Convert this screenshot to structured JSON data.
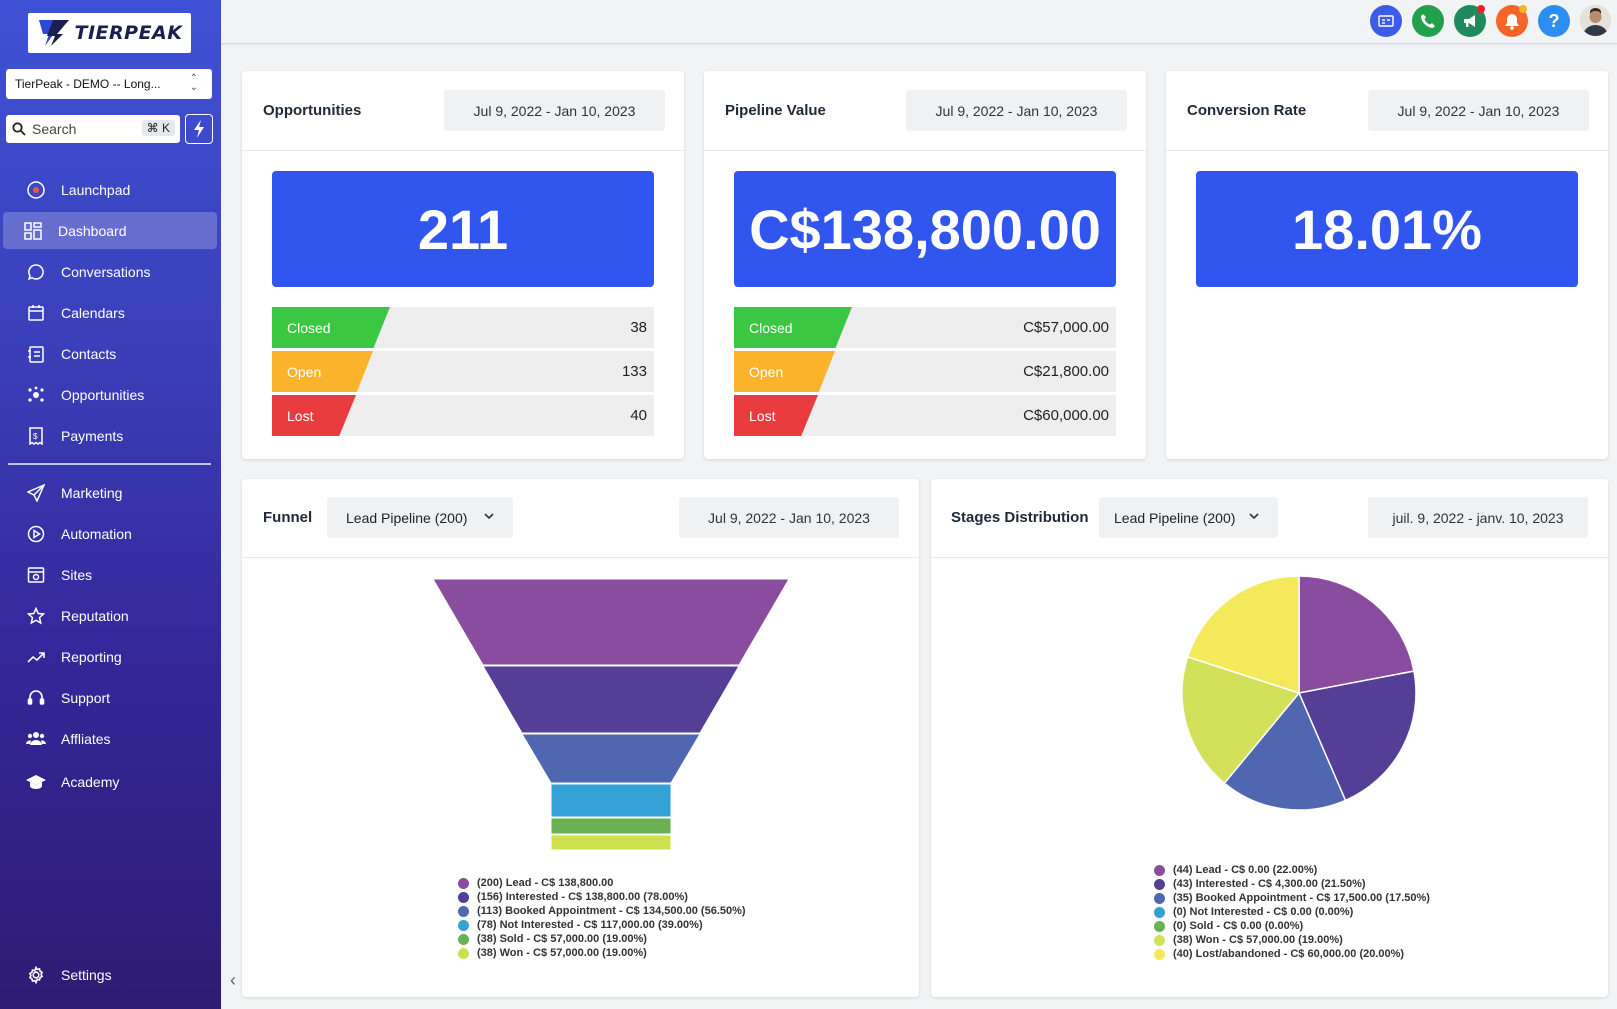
{
  "brand": {
    "name": "TIERPEAK"
  },
  "account": {
    "name": "TierPeak - DEMO -- Long..."
  },
  "search": {
    "placeholder": "Search",
    "shortcut": "⌘ K"
  },
  "sidebar": {
    "items": [
      {
        "label": "Launchpad",
        "icon": "launchpad-icon"
      },
      {
        "label": "Dashboard",
        "icon": "dashboard-icon",
        "active": true
      },
      {
        "label": "Conversations",
        "icon": "chat-icon"
      },
      {
        "label": "Calendars",
        "icon": "calendar-icon"
      },
      {
        "label": "Contacts",
        "icon": "contacts-icon"
      },
      {
        "label": "Opportunities",
        "icon": "opportunities-icon"
      },
      {
        "label": "Payments",
        "icon": "payments-icon"
      },
      {
        "label": "Marketing",
        "icon": "send-icon"
      },
      {
        "label": "Automation",
        "icon": "automation-icon"
      },
      {
        "label": "Sites",
        "icon": "sites-icon"
      },
      {
        "label": "Reputation",
        "icon": "star-icon"
      },
      {
        "label": "Reporting",
        "icon": "trend-icon"
      },
      {
        "label": "Support",
        "icon": "headset-icon"
      },
      {
        "label": "Affliates",
        "icon": "users-icon"
      },
      {
        "label": "Academy",
        "icon": "graduation-cap-icon"
      }
    ],
    "settings_label": "Settings"
  },
  "topbar": {
    "buttons": [
      {
        "icon": "contact-card-icon",
        "color": "#3b5be8"
      },
      {
        "icon": "phone-icon",
        "color": "#22a04b"
      },
      {
        "icon": "megaphone-icon",
        "color": "#1f8a5b"
      },
      {
        "icon": "bell-icon",
        "color": "#f5652a"
      },
      {
        "icon": "help-icon",
        "color": "#2c8ef0"
      }
    ]
  },
  "opportunities": {
    "title": "Opportunities",
    "date_range": "Jul 9, 2022 - Jan 10, 2023",
    "total": "211",
    "rows": [
      {
        "label": "Closed",
        "value": "38",
        "color": "#3cc743"
      },
      {
        "label": "Open",
        "value": "133",
        "color": "#fbb32b"
      },
      {
        "label": "Lost",
        "value": "40",
        "color": "#e83c3f"
      }
    ]
  },
  "pipeline": {
    "title": "Pipeline Value",
    "date_range": "Jul 9, 2022 - Jan 10, 2023",
    "total": "C$138,800.00",
    "rows": [
      {
        "label": "Closed",
        "value": "C$57,000.00",
        "color": "#3cc743"
      },
      {
        "label": "Open",
        "value": "C$21,800.00",
        "color": "#fbb32b"
      },
      {
        "label": "Lost",
        "value": "C$60,000.00",
        "color": "#e83c3f"
      }
    ]
  },
  "conversion": {
    "title": "Conversion Rate",
    "date_range": "Jul 9, 2022 - Jan 10, 2023",
    "total": "18.01%"
  },
  "funnel": {
    "title": "Funnel",
    "pipeline_select": "Lead Pipeline (200)",
    "date_range": "Jul 9, 2022 - Jan 10, 2023",
    "legend": [
      {
        "text": "(200) Lead - C$ 138,800.00",
        "color": "#8a4c9e"
      },
      {
        "text": "(156) Interested - C$ 138,800.00 (78.00%)",
        "color": "#553f96"
      },
      {
        "text": "(113) Booked Appointment - C$ 134,500.00 (56.50%)",
        "color": "#4f67b0"
      },
      {
        "text": "(78) Not Interested - C$ 117,000.00 (39.00%)",
        "color": "#34a1d6"
      },
      {
        "text": "(38) Sold - C$ 57,000.00 (19.00%)",
        "color": "#6ab155"
      },
      {
        "text": "(38) Won - C$ 57,000.00 (19.00%)",
        "color": "#cfe04e"
      }
    ]
  },
  "stages": {
    "title": "Stages Distribution",
    "pipeline_select": "Lead Pipeline (200)",
    "date_range": "juil. 9, 2022 - janv. 10, 2023",
    "legend": [
      {
        "text": "(44) Lead - C$ 0.00 (22.00%)",
        "color": "#8a4c9e"
      },
      {
        "text": "(43) Interested - C$ 4,300.00 (21.50%)",
        "color": "#553f96"
      },
      {
        "text": "(35) Booked Appointment - C$ 17,500.00 (17.50%)",
        "color": "#4f67b0"
      },
      {
        "text": "(0) Not Interested - C$ 0.00 (0.00%)",
        "color": "#34a1d6"
      },
      {
        "text": "(0) Sold - C$ 0.00 (0.00%)",
        "color": "#6ab155"
      },
      {
        "text": "(38) Won - C$ 57,000.00 (19.00%)",
        "color": "#d3e05a"
      },
      {
        "text": "(40) Lost/abandoned - C$ 60,000.00 (20.00%)",
        "color": "#f4e95a"
      }
    ]
  },
  "chart_data": [
    {
      "type": "funnel",
      "title": "Funnel",
      "categories": [
        "Lead",
        "Interested",
        "Booked Appointment",
        "Not Interested",
        "Sold",
        "Won"
      ],
      "values": [
        200,
        156,
        113,
        78,
        38,
        38
      ],
      "colors": [
        "#8a4c9e",
        "#553f96",
        "#4f67b0",
        "#34a1d6",
        "#6ab155",
        "#cfe04e"
      ]
    },
    {
      "type": "pie",
      "title": "Stages Distribution",
      "categories": [
        "Lead",
        "Interested",
        "Booked Appointment",
        "Not Interested",
        "Sold",
        "Won",
        "Lost/abandoned"
      ],
      "values": [
        44,
        43,
        35,
        0,
        0,
        38,
        40
      ],
      "colors": [
        "#8a4c9e",
        "#553f96",
        "#4f67b0",
        "#34a1d6",
        "#6ab155",
        "#d3e05a",
        "#f4e95a"
      ]
    }
  ]
}
